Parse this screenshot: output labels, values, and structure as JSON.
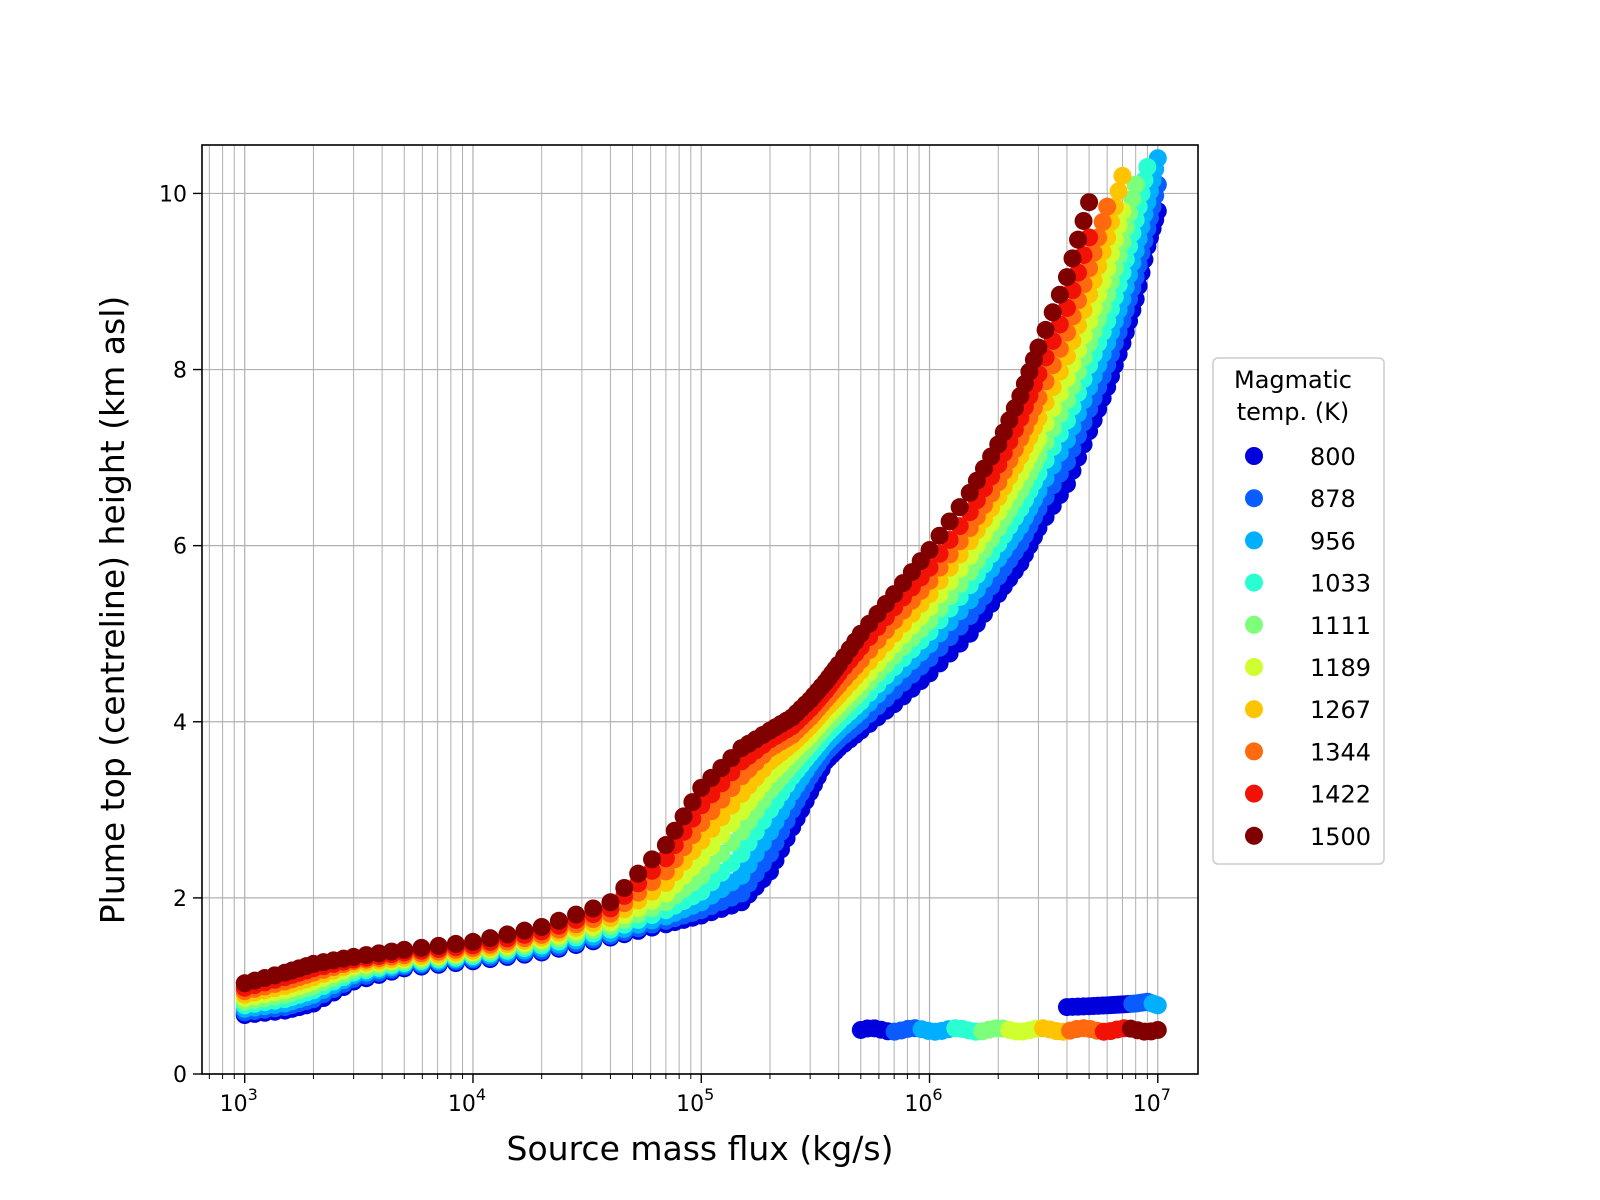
{
  "chart_data": {
    "type": "scatter",
    "xlabel": "Source mass flux (kg/s)",
    "ylabel": "Plume top (centreline) height (km asl)",
    "x_scale": "log",
    "xlim": [
      650,
      15000000
    ],
    "ylim": [
      0,
      10.55
    ],
    "grid": true,
    "x_ticks": [
      {
        "value": 1000,
        "base": "10",
        "exp": "3"
      },
      {
        "value": 10000,
        "base": "10",
        "exp": "4"
      },
      {
        "value": 100000,
        "base": "10",
        "exp": "5"
      },
      {
        "value": 1000000,
        "base": "10",
        "exp": "6"
      },
      {
        "value": 10000000,
        "base": "10",
        "exp": "7"
      }
    ],
    "y_ticks": [
      {
        "value": 0,
        "label": "0"
      },
      {
        "value": 2,
        "label": "2"
      },
      {
        "value": 4,
        "label": "4"
      },
      {
        "value": 6,
        "label": "6"
      },
      {
        "value": 8,
        "label": "8"
      },
      {
        "value": 10,
        "label": "10"
      }
    ],
    "legend": {
      "title_lines": [
        "Magmatic",
        "temp. (K)"
      ],
      "placement": "right-outside",
      "entries": [
        {
          "label": "800",
          "color": "#0000dd"
        },
        {
          "label": "878",
          "color": "#0a5cff"
        },
        {
          "label": "956",
          "color": "#00b0ff"
        },
        {
          "label": "1033",
          "color": "#2affd2"
        },
        {
          "label": "1111",
          "color": "#7dff7a"
        },
        {
          "label": "1189",
          "color": "#cfff2e"
        },
        {
          "label": "1267",
          "color": "#ffc400"
        },
        {
          "label": "1344",
          "color": "#ff6a0f"
        },
        {
          "label": "1422",
          "color": "#f21205"
        },
        {
          "label": "1500",
          "color": "#800000"
        }
      ]
    },
    "series": [
      {
        "name": "800",
        "color": "#0000dd",
        "x": [
          1000,
          1500,
          2000,
          3000,
          5000,
          10000,
          20000,
          40000,
          70000,
          100000,
          150000,
          200000,
          250000,
          300000,
          350000,
          400000,
          500000,
          700000,
          1000000,
          1500000,
          2000000,
          2500000,
          3000000,
          4000000,
          5000000,
          6000000,
          7000000,
          8000000,
          9000000,
          10000000
        ],
        "y": [
          0.67,
          0.72,
          0.8,
          1.05,
          1.2,
          1.28,
          1.38,
          1.55,
          1.7,
          1.8,
          1.95,
          2.3,
          2.8,
          3.2,
          3.55,
          3.7,
          3.9,
          4.2,
          4.55,
          5.0,
          5.45,
          5.8,
          6.2,
          6.7,
          7.3,
          7.8,
          8.3,
          8.8,
          9.4,
          9.8
        ]
      },
      {
        "name": "878",
        "color": "#0a5cff",
        "x": [
          1000,
          1500,
          2000,
          3000,
          5000,
          10000,
          20000,
          40000,
          70000,
          100000,
          150000,
          200000,
          250000,
          300000,
          350000,
          400000,
          500000,
          700000,
          1000000,
          1500000,
          2000000,
          2500000,
          3000000,
          4000000,
          5000000,
          6000000,
          7000000,
          8000000,
          9000000,
          10000000
        ],
        "y": [
          0.7,
          0.76,
          0.85,
          1.08,
          1.22,
          1.3,
          1.4,
          1.57,
          1.74,
          1.86,
          2.05,
          2.5,
          3.0,
          3.38,
          3.65,
          3.8,
          4.0,
          4.35,
          4.72,
          5.2,
          5.65,
          6.02,
          6.42,
          6.95,
          7.55,
          8.05,
          8.55,
          9.05,
          9.6,
          10.1
        ]
      },
      {
        "name": "956",
        "color": "#00b0ff",
        "x": [
          1000,
          1500,
          2000,
          3000,
          5000,
          10000,
          20000,
          40000,
          70000,
          100000,
          150000,
          200000,
          250000,
          300000,
          350000,
          400000,
          500000,
          700000,
          1000000,
          1500000,
          2000000,
          2500000,
          3000000,
          4000000,
          5000000,
          6000000,
          7000000,
          8000000,
          9000000,
          10000000
        ],
        "y": [
          0.74,
          0.8,
          0.9,
          1.12,
          1.24,
          1.32,
          1.43,
          1.6,
          1.79,
          1.95,
          2.25,
          2.75,
          3.2,
          3.52,
          3.75,
          3.9,
          4.12,
          4.5,
          4.88,
          5.38,
          5.85,
          6.22,
          6.62,
          7.2,
          7.8,
          8.3,
          8.8,
          9.35,
          9.9,
          10.4
        ]
      },
      {
        "name": "1033",
        "color": "#2affd2",
        "x": [
          1000,
          1500,
          2000,
          3000,
          5000,
          10000,
          20000,
          40000,
          70000,
          100000,
          150000,
          200000,
          250000,
          300000,
          350000,
          400000,
          500000,
          700000,
          1000000,
          1500000,
          2000000,
          2500000,
          3000000,
          4000000,
          5000000,
          6000000,
          7000000,
          8000000,
          9000000
        ],
        "y": [
          0.78,
          0.85,
          0.95,
          1.15,
          1.26,
          1.34,
          1.46,
          1.64,
          1.86,
          2.07,
          2.5,
          3.0,
          3.38,
          3.64,
          3.85,
          4.0,
          4.23,
          4.62,
          5.02,
          5.55,
          6.02,
          6.42,
          6.82,
          7.42,
          8.05,
          8.55,
          9.1,
          9.7,
          10.3
        ]
      },
      {
        "name": "1111",
        "color": "#7dff7a",
        "x": [
          1000,
          1500,
          2000,
          3000,
          5000,
          10000,
          20000,
          40000,
          70000,
          100000,
          150000,
          200000,
          250000,
          300000,
          350000,
          400000,
          500000,
          700000,
          1000000,
          1500000,
          2000000,
          2500000,
          3000000,
          4000000,
          5000000,
          6000000,
          7000000,
          8000000
        ],
        "y": [
          0.82,
          0.9,
          1.0,
          1.18,
          1.28,
          1.36,
          1.49,
          1.68,
          1.95,
          2.25,
          2.75,
          3.22,
          3.52,
          3.75,
          3.95,
          4.1,
          4.35,
          4.75,
          5.15,
          5.7,
          6.2,
          6.62,
          7.02,
          7.65,
          8.3,
          8.85,
          9.45,
          10.1
        ]
      },
      {
        "name": "1189",
        "color": "#cfff2e",
        "x": [
          1000,
          1500,
          2000,
          3000,
          5000,
          10000,
          20000,
          40000,
          70000,
          100000,
          150000,
          200000,
          250000,
          300000,
          350000,
          400000,
          500000,
          700000,
          1000000,
          1500000,
          2000000,
          2500000,
          3000000,
          4000000,
          5000000,
          6000000,
          7000000
        ],
        "y": [
          0.86,
          0.95,
          1.05,
          1.22,
          1.3,
          1.38,
          1.52,
          1.72,
          2.05,
          2.45,
          2.98,
          3.4,
          3.65,
          3.85,
          4.05,
          4.2,
          4.45,
          4.88,
          5.3,
          5.88,
          6.38,
          6.82,
          7.22,
          7.9,
          8.55,
          9.15,
          9.8
        ]
      },
      {
        "name": "1267",
        "color": "#ffc400",
        "x": [
          1000,
          1500,
          2000,
          3000,
          5000,
          10000,
          20000,
          40000,
          70000,
          100000,
          150000,
          200000,
          250000,
          300000,
          350000,
          400000,
          500000,
          700000,
          1000000,
          1500000,
          2000000,
          2500000,
          3000000,
          4000000,
          5000000,
          6000000,
          7000000
        ],
        "y": [
          0.9,
          1.0,
          1.1,
          1.25,
          1.32,
          1.4,
          1.55,
          1.77,
          2.17,
          2.65,
          3.18,
          3.55,
          3.75,
          3.95,
          4.15,
          4.3,
          4.58,
          5.0,
          5.45,
          6.05,
          6.55,
          7.02,
          7.45,
          8.15,
          8.85,
          9.5,
          10.2
        ]
      },
      {
        "name": "1344",
        "color": "#ff6a0f",
        "x": [
          1000,
          1500,
          2000,
          3000,
          5000,
          10000,
          20000,
          40000,
          70000,
          100000,
          150000,
          200000,
          250000,
          300000,
          350000,
          400000,
          500000,
          700000,
          1000000,
          1500000,
          2000000,
          2500000,
          3000000,
          4000000,
          5000000,
          6000000
        ],
        "y": [
          0.94,
          1.05,
          1.15,
          1.28,
          1.35,
          1.43,
          1.58,
          1.82,
          2.3,
          2.85,
          3.38,
          3.7,
          3.85,
          4.05,
          4.25,
          4.42,
          4.7,
          5.15,
          5.6,
          6.2,
          6.72,
          7.22,
          7.68,
          8.42,
          9.15,
          9.85
        ]
      },
      {
        "name": "1422",
        "color": "#f21205",
        "x": [
          1000,
          1500,
          2000,
          3000,
          5000,
          10000,
          20000,
          40000,
          70000,
          100000,
          150000,
          200000,
          250000,
          300000,
          350000,
          400000,
          500000,
          700000,
          1000000,
          1500000,
          2000000,
          2500000,
          3000000,
          4000000,
          5000000
        ],
        "y": [
          0.98,
          1.1,
          1.2,
          1.3,
          1.38,
          1.46,
          1.62,
          1.88,
          2.45,
          3.05,
          3.55,
          3.8,
          3.95,
          4.15,
          4.35,
          4.55,
          4.85,
          5.3,
          5.75,
          6.38,
          6.92,
          7.45,
          7.95,
          8.7,
          9.5
        ]
      },
      {
        "name": "1500",
        "color": "#800000",
        "x": [
          1000,
          1500,
          2000,
          3000,
          5000,
          10000,
          20000,
          40000,
          70000,
          100000,
          150000,
          200000,
          250000,
          300000,
          350000,
          400000,
          500000,
          700000,
          1000000,
          1500000,
          2000000,
          2500000,
          3000000,
          4000000,
          5000000
        ],
        "y": [
          1.03,
          1.15,
          1.25,
          1.33,
          1.41,
          1.5,
          1.67,
          1.95,
          2.6,
          3.25,
          3.7,
          3.9,
          4.05,
          4.25,
          4.45,
          4.65,
          5.0,
          5.45,
          5.95,
          6.6,
          7.15,
          7.7,
          8.25,
          9.05,
          9.9
        ]
      }
    ],
    "low_branch": {
      "x": [
        500000,
        700000,
        1000000,
        1500000,
        2000000,
        3000000,
        5000000,
        7000000,
        10000000
      ],
      "y": [
        0.5,
        0.5,
        0.5,
        0.5,
        0.5,
        0.5,
        0.5,
        0.5,
        0.5
      ]
    },
    "upper_low_branch": {
      "x": [
        4000000,
        5000000,
        6000000,
        7000000,
        8000000,
        9000000,
        10000000
      ],
      "y": [
        0.76,
        0.77,
        0.78,
        0.79,
        0.8,
        0.82,
        0.78
      ]
    }
  }
}
